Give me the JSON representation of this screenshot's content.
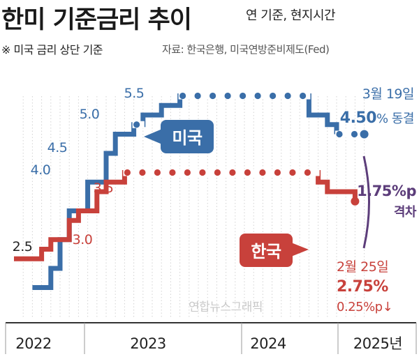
{
  "title": "한미 기준금리 추이",
  "subtitle": "연 기준, 현지시간",
  "note": "※ 미국 금리 상단 기준",
  "source": "자료: 한국은행, 미국연방준비제도(Fed)",
  "credit": "연합뉴스그래픽",
  "colors": {
    "us": "#3a6ea8",
    "korea": "#c8413b",
    "gap": "#5c3d7a",
    "axis": "#333333"
  },
  "chart_data": {
    "type": "line",
    "step": true,
    "x_ticks": [
      "2022",
      "2023",
      "2024",
      "2025년"
    ],
    "series": [
      {
        "name": "미국",
        "key": "us",
        "points": [
          {
            "x": "2022-03",
            "y": 0.5
          },
          {
            "x": "2022-05",
            "y": 1.0
          },
          {
            "x": "2022-06",
            "y": 1.75
          },
          {
            "x": "2022-07",
            "y": 2.5
          },
          {
            "x": "2022-09",
            "y": 3.25
          },
          {
            "x": "2022-11",
            "y": 4.0
          },
          {
            "x": "2022-12",
            "y": 4.5
          },
          {
            "x": "2023-02",
            "y": 4.75
          },
          {
            "x": "2023-03",
            "y": 5.0
          },
          {
            "x": "2023-05",
            "y": 5.25
          },
          {
            "x": "2023-07",
            "y": 5.5
          },
          {
            "x": "2024-09",
            "y": 5.0
          },
          {
            "x": "2024-11",
            "y": 4.75
          },
          {
            "x": "2024-12",
            "y": 4.5
          },
          {
            "x": "2025-03",
            "y": 4.5
          }
        ]
      },
      {
        "name": "한국",
        "key": "korea",
        "points": [
          {
            "x": "2022-01",
            "y": 1.25
          },
          {
            "x": "2022-04",
            "y": 1.5
          },
          {
            "x": "2022-05",
            "y": 1.75
          },
          {
            "x": "2022-07",
            "y": 2.25
          },
          {
            "x": "2022-08",
            "y": 2.5
          },
          {
            "x": "2022-10",
            "y": 3.0
          },
          {
            "x": "2022-11",
            "y": 3.25
          },
          {
            "x": "2023-01",
            "y": 3.5
          },
          {
            "x": "2024-10",
            "y": 3.25
          },
          {
            "x": "2024-11",
            "y": 3.0
          },
          {
            "x": "2025-02",
            "y": 2.75
          }
        ]
      }
    ],
    "value_labels": [
      {
        "series": "korea",
        "text": "2.5"
      },
      {
        "series": "us",
        "text": "4.0"
      },
      {
        "series": "us",
        "text": "4.5"
      },
      {
        "series": "us",
        "text": "5.0"
      },
      {
        "series": "us",
        "text": "5.5"
      },
      {
        "series": "korea",
        "text": "3.0"
      },
      {
        "series": "korea",
        "text": "3.5"
      }
    ],
    "callouts": {
      "us_badge": "미국",
      "korea_badge": "한국",
      "us_date": "3월 19일",
      "us_value": "4.50",
      "us_suffix": "% 동결",
      "gap_value": "1.75%p",
      "gap_label": "격차",
      "korea_date": "2월 25일",
      "korea_value": "2.75%",
      "korea_change": "0.25%p↓"
    }
  }
}
